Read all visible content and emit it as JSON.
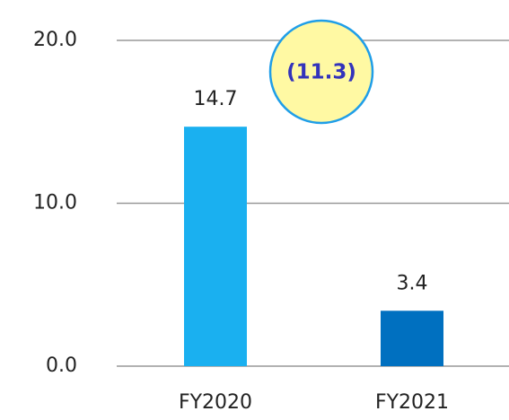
{
  "chart_data": {
    "type": "bar",
    "categories": [
      "FY2020",
      "FY2021"
    ],
    "values": [
      14.7,
      3.4
    ],
    "colors": [
      "#1ab0f0",
      "#0070c0"
    ],
    "ylim": [
      0,
      20
    ],
    "yticks": [
      {
        "value": 0,
        "label": "0.0"
      },
      {
        "value": 10,
        "label": "10.0"
      },
      {
        "value": 20,
        "label": "20.0"
      }
    ],
    "grid": true,
    "annotation": "(11.3)"
  }
}
